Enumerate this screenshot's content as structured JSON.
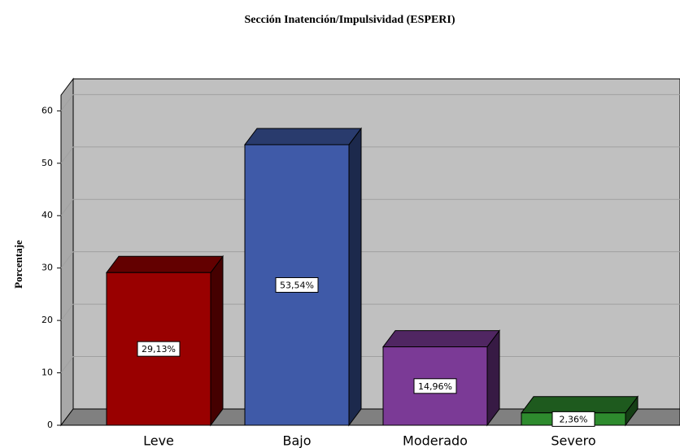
{
  "chart_data": {
    "type": "bar3d",
    "title": "Sección Inatención/Impulsividad (ESPERI)",
    "y_label": "Porcentaje",
    "categories": [
      "Leve",
      "Bajo",
      "Moderado",
      "Severo"
    ],
    "values": [
      29.13,
      53.54,
      14.96,
      2.36
    ],
    "value_labels": [
      "29,13%",
      "53,54%",
      "14,96%",
      "2,36%"
    ],
    "colors": [
      "#990000",
      "#3f5aa8",
      "#7b3a96",
      "#2e8b2e"
    ],
    "ylim": [
      0,
      63
    ],
    "yticks": [
      0,
      10,
      20,
      30,
      40,
      50,
      60
    ],
    "grid": true
  }
}
